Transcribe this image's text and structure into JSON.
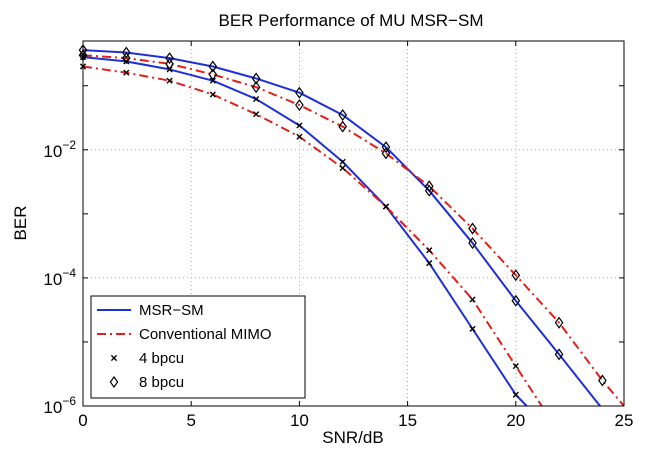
{
  "chart_data": {
    "type": "line",
    "title": "BER Performance of MU MSR−SM",
    "xlabel": "SNR/dB",
    "ylabel": "BER",
    "xlim": [
      0,
      25
    ],
    "ylim": [
      1e-06,
      0.5
    ],
    "y_scale": "log",
    "grid": true,
    "legend_position": "bottom-left",
    "x_ticks": [
      0,
      5,
      10,
      15,
      20,
      25
    ],
    "x_tick_labels": [
      "0",
      "5",
      "10",
      "15",
      "20",
      "25"
    ],
    "y_ticks": [
      1e-06,
      0.0001,
      0.01
    ],
    "y_tick_labels": [
      {
        "base": "10",
        "exp": "−6"
      },
      {
        "base": "10",
        "exp": "−4"
      },
      {
        "base": "10",
        "exp": "−2"
      }
    ],
    "legend": [
      {
        "label": "MSR−SM",
        "kind": "line",
        "color": "#1f2fd6",
        "dash": "solid"
      },
      {
        "label": "Conventional MIMO",
        "kind": "line",
        "color": "#e0201a",
        "dash": "dashdot"
      },
      {
        "label": "4 bpcu",
        "kind": "marker",
        "marker": "x"
      },
      {
        "label": "8 bpcu",
        "kind": "marker",
        "marker": "diamond"
      }
    ],
    "series": [
      {
        "scheme": "MSR-SM",
        "rate": "8 bpcu",
        "color": "#1f2fd6",
        "dash": "solid",
        "marker": "diamond",
        "x": [
          0,
          2,
          4,
          6,
          8,
          10,
          12,
          14,
          16,
          18,
          20,
          22,
          24
        ],
        "y": [
          0.36,
          0.33,
          0.27,
          0.2,
          0.13,
          0.078,
          0.035,
          0.011,
          0.0023,
          0.00035,
          4.4e-05,
          6.4e-06,
          9e-07
        ]
      },
      {
        "scheme": "Conventional MIMO",
        "rate": "8 bpcu",
        "color": "#e0201a",
        "dash": "dashdot",
        "marker": "diamond",
        "x": [
          0,
          2,
          4,
          6,
          8,
          10,
          12,
          14,
          16,
          18,
          20,
          22,
          24,
          25
        ],
        "y": [
          0.3,
          0.27,
          0.22,
          0.15,
          0.095,
          0.05,
          0.023,
          0.0088,
          0.0027,
          0.00059,
          0.00011,
          2e-05,
          2.5e-06,
          1e-06
        ]
      },
      {
        "scheme": "MSR-SM",
        "rate": "4 bpcu",
        "color": "#1f2fd6",
        "dash": "solid",
        "marker": "x",
        "x": [
          0,
          2,
          4,
          6,
          8,
          10,
          12,
          14,
          16,
          18,
          20,
          20.5
        ],
        "y": [
          0.28,
          0.24,
          0.18,
          0.12,
          0.062,
          0.024,
          0.0065,
          0.0013,
          0.00017,
          1.6e-05,
          1.5e-06,
          1e-06
        ]
      },
      {
        "scheme": "Conventional MIMO",
        "rate": "4 bpcu",
        "color": "#e0201a",
        "dash": "dashdot",
        "marker": "x",
        "x": [
          0,
          2,
          4,
          6,
          8,
          10,
          12,
          14,
          16,
          18,
          20,
          21.2
        ],
        "y": [
          0.2,
          0.16,
          0.12,
          0.073,
          0.036,
          0.016,
          0.0052,
          0.0013,
          0.00027,
          4.6e-05,
          4.2e-06,
          1e-06
        ]
      }
    ]
  }
}
